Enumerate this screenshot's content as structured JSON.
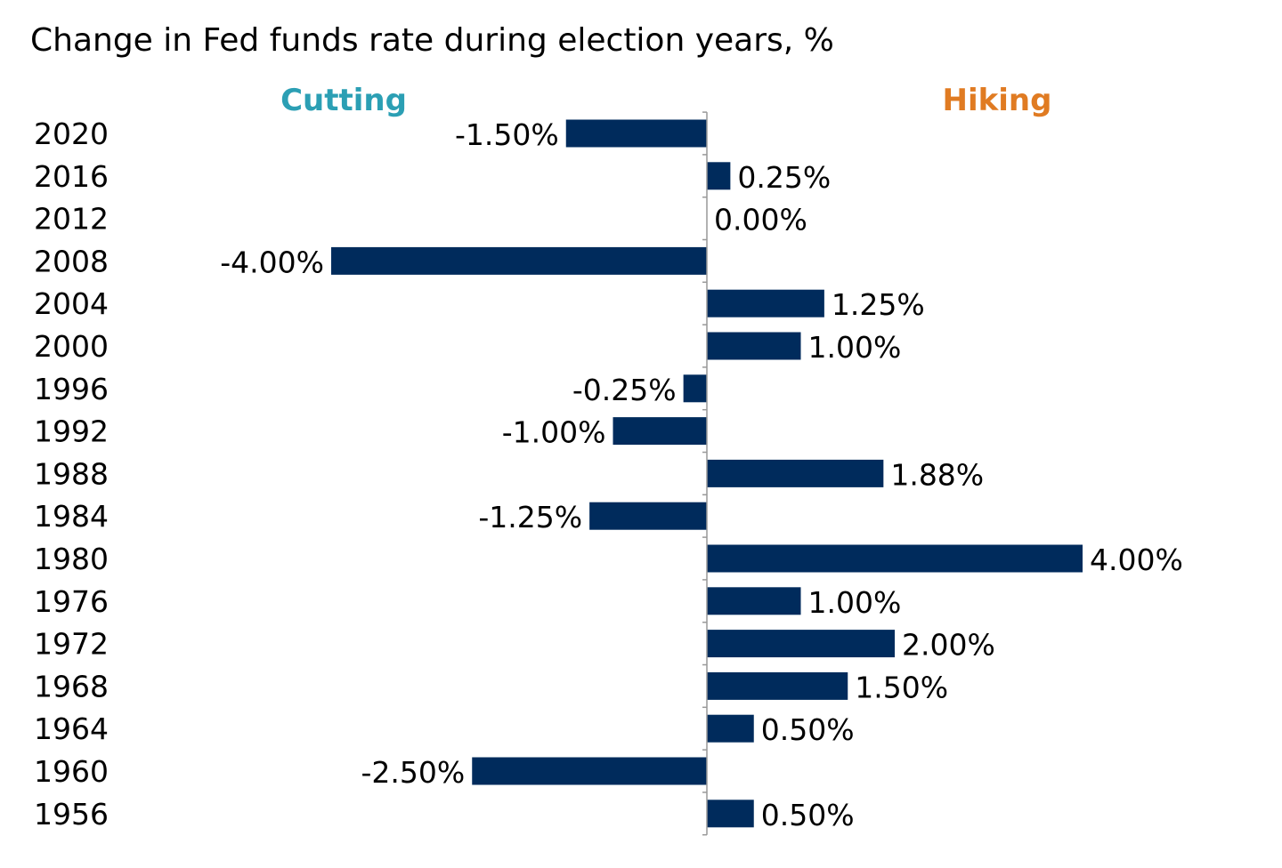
{
  "chart_data": {
    "type": "bar",
    "orientation": "horizontal",
    "title": "Change in Fed funds rate during election years, %",
    "left_label": "Cutting",
    "right_label": "Hiking",
    "categories": [
      "2020",
      "2016",
      "2012",
      "2008",
      "2004",
      "2000",
      "1996",
      "1992",
      "1988",
      "1984",
      "1980",
      "1976",
      "1972",
      "1968",
      "1964",
      "1960",
      "1956"
    ],
    "values": [
      -1.5,
      0.25,
      0.0,
      -4.0,
      1.25,
      1.0,
      -0.25,
      -1.0,
      1.88,
      -1.25,
      4.0,
      1.0,
      2.0,
      1.5,
      0.5,
      -2.5,
      0.5
    ],
    "value_labels": [
      "-1.50%",
      "0.25%",
      "0.00%",
      "-4.00%",
      "1.25%",
      "1.00%",
      "-0.25%",
      "-1.00%",
      "1.88%",
      "-1.25%",
      "4.00%",
      "1.00%",
      "2.00%",
      "1.50%",
      "0.50%",
      "-2.50%",
      "0.50%"
    ],
    "xlim": [
      -4,
      4
    ],
    "grid": false,
    "legend": "none",
    "colors": {
      "bar": "#002b5c",
      "cutting": "#2b9fb4",
      "hiking": "#e07b22",
      "axis": "#999999",
      "text": "#000000"
    }
  }
}
